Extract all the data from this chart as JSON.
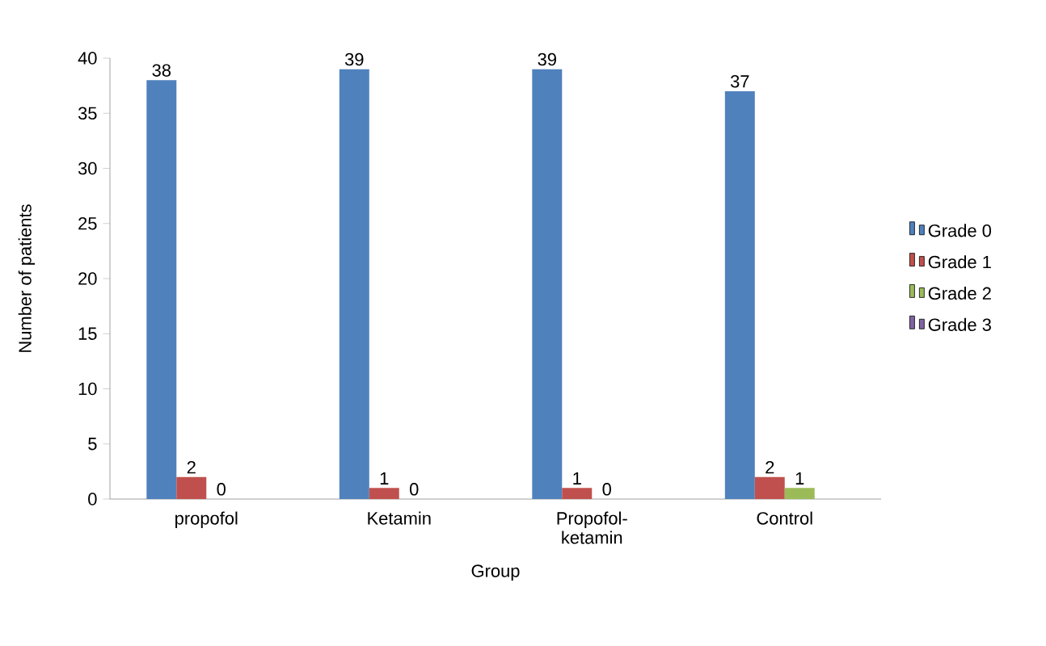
{
  "chart_data": {
    "type": "bar",
    "xlabel": "Group",
    "ylabel": "Number of patients",
    "categories": [
      "propofol",
      "Ketamin",
      "Propofol-ketamin",
      "Control"
    ],
    "series": [
      {
        "name": "Grade 0",
        "color": "#4f81bd",
        "values": [
          38,
          39,
          39,
          37
        ],
        "value_labels": [
          "38",
          "39",
          "39",
          "37"
        ]
      },
      {
        "name": "Grade 1",
        "color": "#c0504d",
        "values": [
          2,
          1,
          1,
          2
        ],
        "value_labels": [
          "2",
          "1",
          "1",
          "2"
        ]
      },
      {
        "name": "Grade 2",
        "color": "#9bbb59",
        "values": [
          0,
          0,
          0,
          1
        ],
        "value_labels": [
          "0",
          "0",
          "0",
          "1"
        ]
      },
      {
        "name": "Grade 3",
        "color": "#8064a2",
        "values": [
          0,
          0,
          0,
          0
        ],
        "value_labels": [
          null,
          null,
          null,
          null
        ]
      }
    ],
    "ylim": [
      0,
      40
    ],
    "yticks": [
      0,
      5,
      10,
      15,
      20,
      25,
      30,
      35,
      40
    ],
    "grid": false,
    "legend": "right"
  }
}
